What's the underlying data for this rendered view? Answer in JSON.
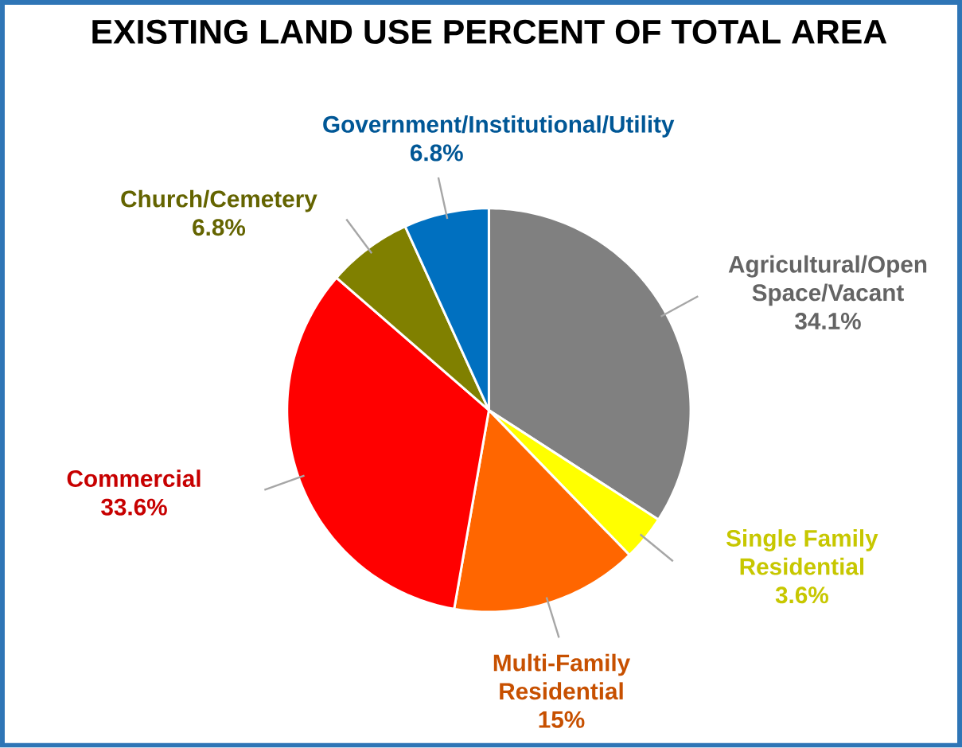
{
  "chart_data": {
    "type": "pie",
    "title": "EXISTING LAND USE PERCENT OF TOTAL AREA",
    "categories": [
      "Agricultural/Open Space/Vacant",
      "Single Family Residential",
      "Multi-Family Residential",
      "Commercial",
      "Church/Cemetery",
      "Government/Institutional/Utility"
    ],
    "values": [
      34.1,
      3.6,
      15,
      33.6,
      6.8,
      6.8
    ],
    "value_labels": [
      "34.1%",
      "3.6%",
      "15%",
      "33.6%",
      "6.8%",
      "6.8%"
    ],
    "colors": [
      "#808080",
      "#ffff00",
      "#ff6600",
      "#ff0000",
      "#808000",
      "#0070c0"
    ]
  }
}
